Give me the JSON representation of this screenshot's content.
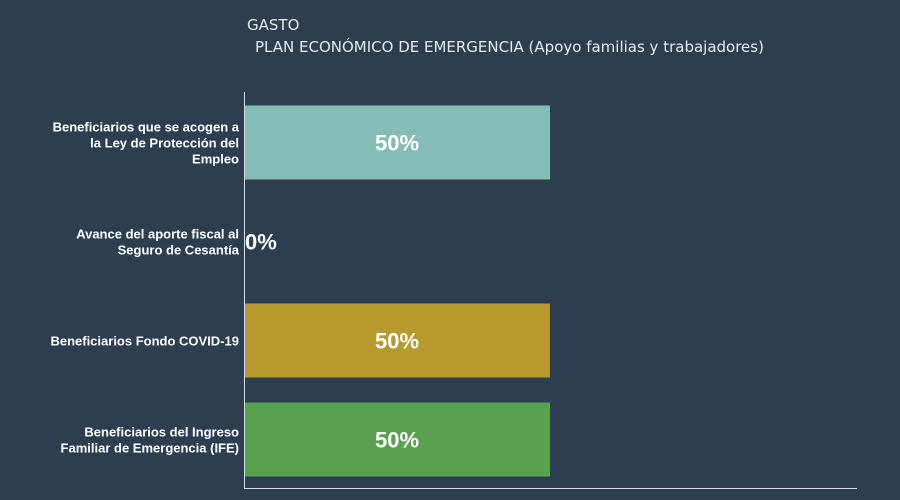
{
  "chart_data": {
    "type": "bar",
    "orientation": "horizontal",
    "title": "GASTO",
    "subtitle": "PLAN ECONÓMICO DE EMERGENCIA (Apoyo familias y trabajadores)",
    "categories": [
      [
        "Beneficiarios que se acogen a",
        "la Ley de Protección del",
        "Empleo"
      ],
      [
        "Avance del aporte fiscal al",
        "Seguro de Cesantía"
      ],
      [
        "Beneficiarios Fondo COVID-19"
      ],
      [
        "Beneficiarios del Ingreso",
        "Familiar de Emergencia (IFE)"
      ]
    ],
    "values": [
      50,
      0,
      50,
      50
    ],
    "value_labels": [
      "50%",
      "0%",
      "50%",
      "50%"
    ],
    "colors": [
      "#86bcb6",
      "#4e79a7",
      "#b79a2e",
      "#59a14f"
    ],
    "xlim": [
      0,
      100
    ],
    "grid": false,
    "legend": "none"
  },
  "colors": {
    "background": "#2d3e50",
    "axis": "#d9dde2"
  }
}
